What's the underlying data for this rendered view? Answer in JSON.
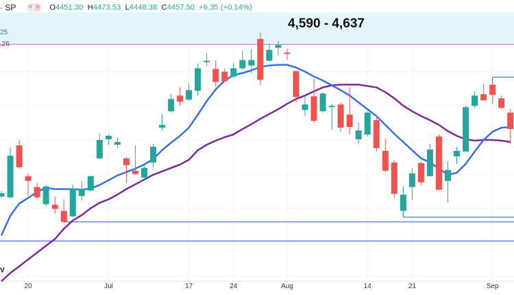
{
  "header": {
    "symbol": "· SP",
    "button_1": "=",
    "button_2": "≈",
    "ohlc": {
      "o_label": "O",
      "o": "4451.30",
      "h_label": "H",
      "h": "4473.53",
      "l_label": "L",
      "l": "4448.38",
      "c_label": "C",
      "c": "4457.50",
      "change": "+6.35 (+0.14%)"
    }
  },
  "left_labels": {
    "upper": "25",
    "lower": ".26",
    "bottom": "V"
  },
  "chart_data": {
    "type": "candlestick",
    "ylim": [
      4245,
      4655
    ],
    "colors": {
      "up": "#26a69a",
      "down": "#ef5350",
      "ma_fast": "#3a6ee8",
      "ma_slow": "#7b2a9a",
      "zone": "#e3f4fb",
      "zone_line": "#c97cc0",
      "level": "#4a6ad8"
    },
    "x_tick_labels": [
      {
        "date": "2023-06-20",
        "label": "20"
      },
      {
        "date": "2023-07-03",
        "label": "Jul"
      },
      {
        "date": "2023-07-17",
        "label": "17"
      },
      {
        "date": "2023-07-24",
        "label": "24"
      },
      {
        "date": "2023-08-01",
        "label": "Aug"
      },
      {
        "date": "2023-08-14",
        "label": "14"
      },
      {
        "date": "2023-08-21",
        "label": "21"
      },
      {
        "date": "2023-09-01",
        "label": "Sep"
      }
    ],
    "zone": {
      "low": 4590,
      "high": 4637,
      "label": "4,590 - 4,637"
    },
    "levels": [
      {
        "price": 4330,
        "from": "2023-06-26"
      },
      {
        "price": 4302,
        "from": null
      },
      {
        "price": 4337,
        "from": "2023-08-18"
      },
      {
        "price": 4542,
        "from": "2023-09-01"
      }
    ],
    "candles": [
      [
        "2023-06-14",
        4367,
        4375,
        4365,
        4372
      ],
      [
        "2023-06-15",
        4366,
        4439,
        4364,
        4427
      ],
      [
        "2023-06-16",
        4442,
        4450,
        4408,
        4410
      ],
      [
        "2023-06-20",
        4397,
        4401,
        4368,
        4390
      ],
      [
        "2023-06-21",
        4381,
        4387,
        4364,
        4366
      ],
      [
        "2023-06-22",
        4356,
        4384,
        4353,
        4382
      ],
      [
        "2023-06-23",
        4355,
        4367,
        4342,
        4349
      ],
      [
        "2023-06-26",
        4346,
        4363,
        4329,
        4330
      ],
      [
        "2023-06-27",
        4338,
        4385,
        4337,
        4379
      ],
      [
        "2023-06-28",
        4368,
        4390,
        4361,
        4378
      ],
      [
        "2023-06-29",
        4376,
        4398,
        4375,
        4397
      ],
      [
        "2023-06-30",
        4423,
        4459,
        4422,
        4450
      ],
      [
        "2023-07-03",
        4451,
        4458,
        4443,
        4456
      ],
      [
        "2023-07-05",
        4443,
        4454,
        4438,
        4447
      ],
      [
        "2023-07-06",
        4423,
        4425,
        4387,
        4413
      ],
      [
        "2023-07-07",
        4405,
        4442,
        4399,
        4400
      ],
      [
        "2023-07-10",
        4395,
        4412,
        4393,
        4409
      ],
      [
        "2023-07-11",
        4417,
        4444,
        4410,
        4440
      ],
      [
        "2023-07-12",
        4468,
        4488,
        4464,
        4472
      ],
      [
        "2023-07-13",
        4492,
        4517,
        4490,
        4510
      ],
      [
        "2023-07-14",
        4515,
        4527,
        4500,
        4506
      ],
      [
        "2023-07-17",
        4509,
        4533,
        4507,
        4523
      ],
      [
        "2023-07-18",
        4522,
        4562,
        4515,
        4555
      ],
      [
        "2023-07-19",
        4564,
        4578,
        4558,
        4566
      ],
      [
        "2023-07-20",
        4554,
        4567,
        4528,
        4535
      ],
      [
        "2023-07-21",
        4550,
        4555,
        4535,
        4536
      ],
      [
        "2023-07-24",
        4543,
        4563,
        4541,
        4555
      ],
      [
        "2023-07-25",
        4555,
        4580,
        4552,
        4567
      ],
      [
        "2023-07-26",
        4559,
        4583,
        4548,
        4567
      ],
      [
        "2023-07-27",
        4598,
        4607,
        4530,
        4538
      ],
      [
        "2023-07-28",
        4566,
        4591,
        4565,
        4582
      ],
      [
        "2023-07-31",
        4585,
        4595,
        4573,
        4589
      ],
      [
        "2023-08-01",
        4578,
        4584,
        4567,
        4576
      ],
      [
        "2023-08-02",
        4551,
        4551,
        4505,
        4513
      ],
      [
        "2023-08-03",
        4494,
        4515,
        4485,
        4502
      ],
      [
        "2023-08-04",
        4514,
        4540,
        4475,
        4478
      ],
      [
        "2023-08-07",
        4492,
        4520,
        4490,
        4518
      ],
      [
        "2023-08-08",
        4498,
        4503,
        4465,
        4500
      ],
      [
        "2023-08-09",
        4502,
        4505,
        4462,
        4468
      ],
      [
        "2023-08-10",
        4487,
        4527,
        4458,
        4469
      ],
      [
        "2023-08-11",
        4451,
        4476,
        4445,
        4464
      ],
      [
        "2023-08-14",
        4458,
        4492,
        4455,
        4490
      ],
      [
        "2023-08-15",
        4479,
        4485,
        4433,
        4438
      ],
      [
        "2023-08-16",
        4434,
        4452,
        4403,
        4405
      ],
      [
        "2023-08-17",
        4417,
        4420,
        4365,
        4371
      ],
      [
        "2023-08-18",
        4346,
        4382,
        4345,
        4370
      ],
      [
        "2023-08-21",
        4381,
        4409,
        4362,
        4401
      ],
      [
        "2023-08-22",
        4416,
        4418,
        4384,
        4388
      ],
      [
        "2023-08-23",
        4397,
        4444,
        4397,
        4436
      ],
      [
        "2023-08-24",
        4455,
        4458,
        4377,
        4377
      ],
      [
        "2023-08-25",
        4390,
        4419,
        4358,
        4406
      ],
      [
        "2023-08-28",
        4426,
        4440,
        4415,
        4434
      ],
      [
        "2023-08-29",
        4433,
        4500,
        4433,
        4498
      ],
      [
        "2023-08-30",
        4500,
        4521,
        4497,
        4515
      ],
      [
        "2023-08-31",
        4517,
        4532,
        4508,
        4508
      ],
      [
        "2023-09-01",
        4531,
        4532,
        4503,
        4516
      ],
      [
        "2023-09-05",
        4511,
        4515,
        4495,
        4497
      ],
      [
        "2023-09-06",
        4490,
        4495,
        4444,
        4466
      ]
    ],
    "ma_fast": [
      4310,
      4339,
      4357,
      4365,
      4374,
      4380,
      4378,
      4378,
      4378,
      4377,
      4379,
      4384,
      4391,
      4398,
      4403,
      4408,
      4414,
      4422,
      4435,
      4446,
      4456,
      4468,
      4487,
      4507,
      4524,
      4537,
      4545,
      4548,
      4552,
      4557,
      4559,
      4560,
      4560,
      4556,
      4550,
      4543,
      4537,
      4530,
      4523,
      4515,
      4505,
      4495,
      4485,
      4472,
      4459,
      4447,
      4435,
      4423,
      4417,
      4408,
      4399,
      4402,
      4415,
      4433,
      4450,
      4462,
      4468,
      4469
    ],
    "ma_slow": [
      4243,
      4255,
      4265,
      4275,
      4285,
      4295,
      4305,
      4320,
      4332,
      4340,
      4350,
      4358,
      4363,
      4370,
      4378,
      4385,
      4392,
      4399,
      4404,
      4409,
      4414,
      4421,
      4435,
      4443,
      4449,
      4454,
      4458,
      4466,
      4473,
      4481,
      4488,
      4495,
      4503,
      4510,
      4515,
      4521,
      4527,
      4530,
      4531,
      4531,
      4531,
      4529,
      4527,
      4520,
      4511,
      4500,
      4492,
      4485,
      4479,
      4472,
      4463,
      4456,
      4451,
      4449,
      4450,
      4450,
      4449,
      4447
    ]
  }
}
